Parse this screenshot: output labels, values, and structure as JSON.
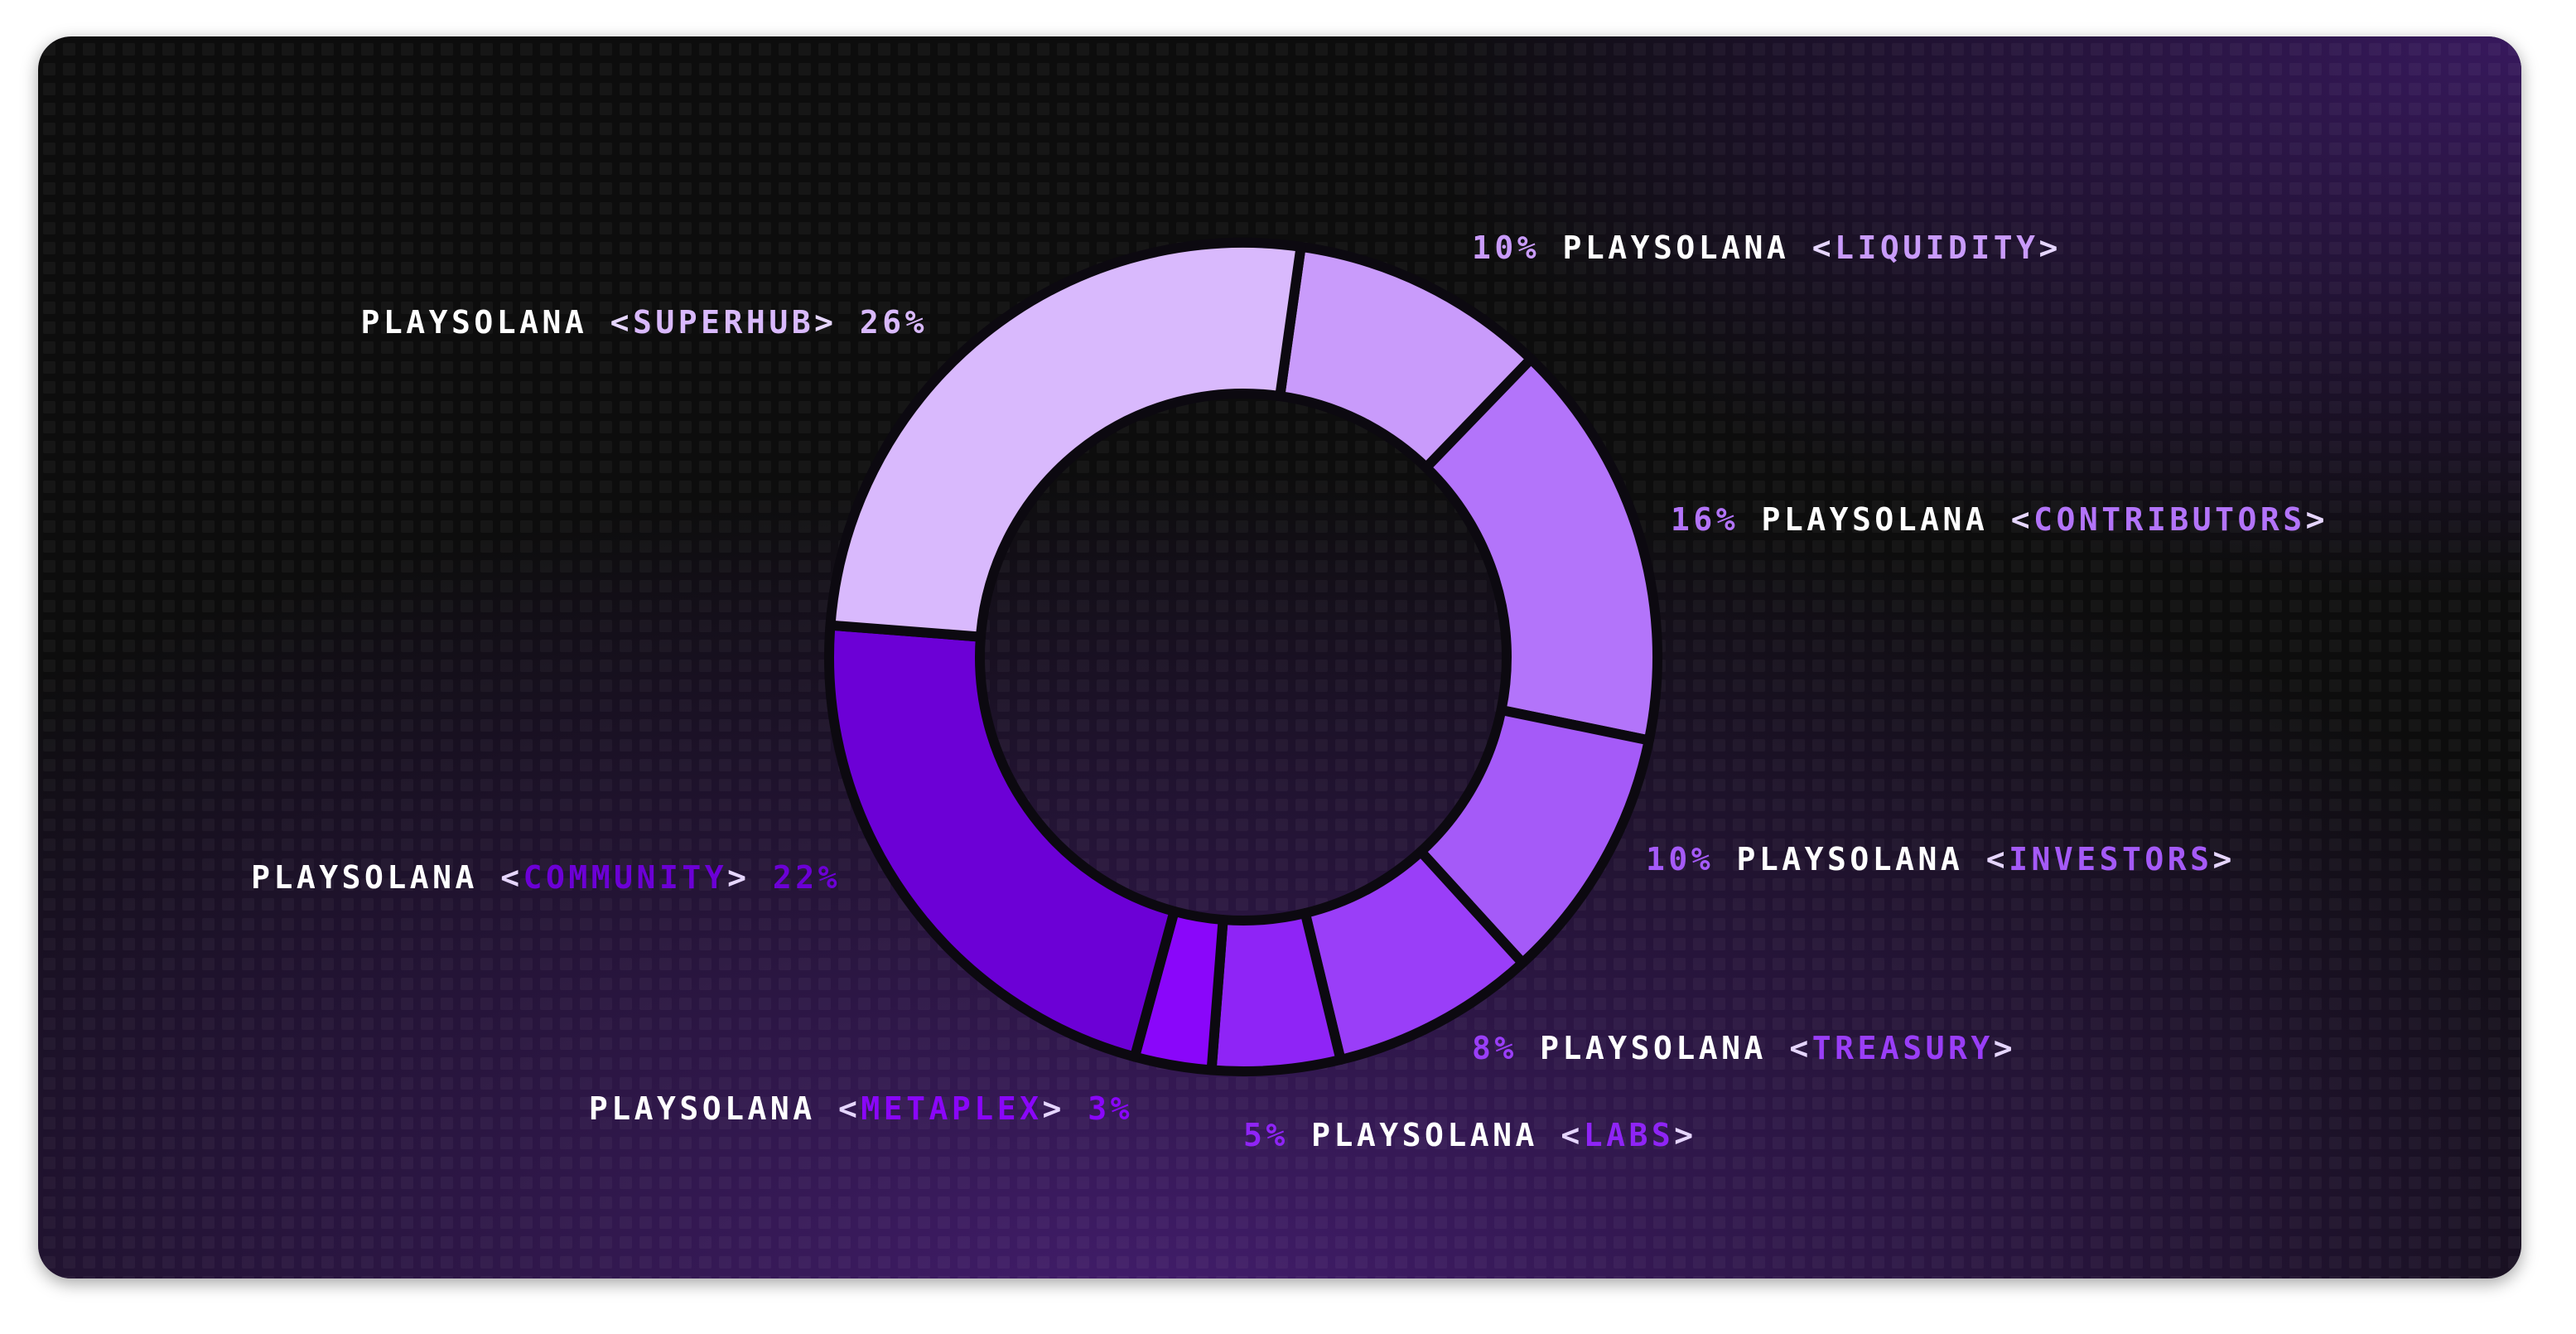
{
  "chart_data": {
    "type": "donut",
    "label_prefix": "PLAYSOLANA",
    "bracket_open": "<",
    "bracket_close": ">",
    "categories": [
      "LIQUIDITY",
      "CONTRIBUTORS",
      "INVESTORS",
      "TREASURY",
      "LABS",
      "METAPLEX",
      "COMMUNITY",
      "SUPERHUB"
    ],
    "values": [
      10,
      16,
      10,
      8,
      5,
      3,
      22,
      26
    ],
    "value_labels": [
      "10%",
      "16%",
      "10%",
      "8%",
      "5%",
      "3%",
      "22%",
      "26%"
    ],
    "colors": [
      "#c99bfb",
      "#b374fa",
      "#a55af8",
      "#9a3ef8",
      "#8f24f6",
      "#8a06fa",
      "#6c00d6",
      "#d9b9fd"
    ]
  }
}
